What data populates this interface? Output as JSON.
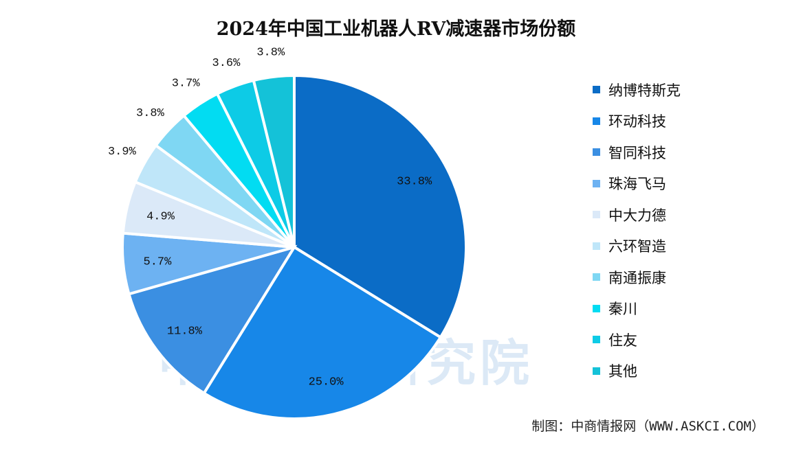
{
  "chart_data": {
    "type": "pie",
    "title": "2024年中国工业机器人RV减速器市场份额",
    "categories": [
      "纳博特斯克",
      "环动科技",
      "智同科技",
      "珠海飞马",
      "中大力德",
      "六环智造",
      "南通振康",
      "秦川",
      "住友",
      "其他"
    ],
    "values": [
      33.8,
      25.0,
      11.8,
      5.7,
      4.9,
      3.9,
      3.8,
      3.7,
      3.6,
      3.8
    ],
    "labels": [
      "33.8%",
      "25.0%",
      "11.8%",
      "5.7%",
      "4.9%",
      "3.9%",
      "3.8%",
      "3.7%",
      "3.6%",
      "3.8%"
    ],
    "colors": [
      "#0b6cc6",
      "#1787e8",
      "#3b8fe2",
      "#6db2f2",
      "#dbe9f8",
      "#bfe6f9",
      "#7fd7f3",
      "#02dcf2",
      "#0dcbe6",
      "#14c2d8"
    ],
    "start_angle": "12 o'clock, clockwise",
    "legend_position": "right"
  },
  "watermark": "中商产业研究院",
  "source": "制图：中商情报网（WWW.ASKCI.COM）"
}
